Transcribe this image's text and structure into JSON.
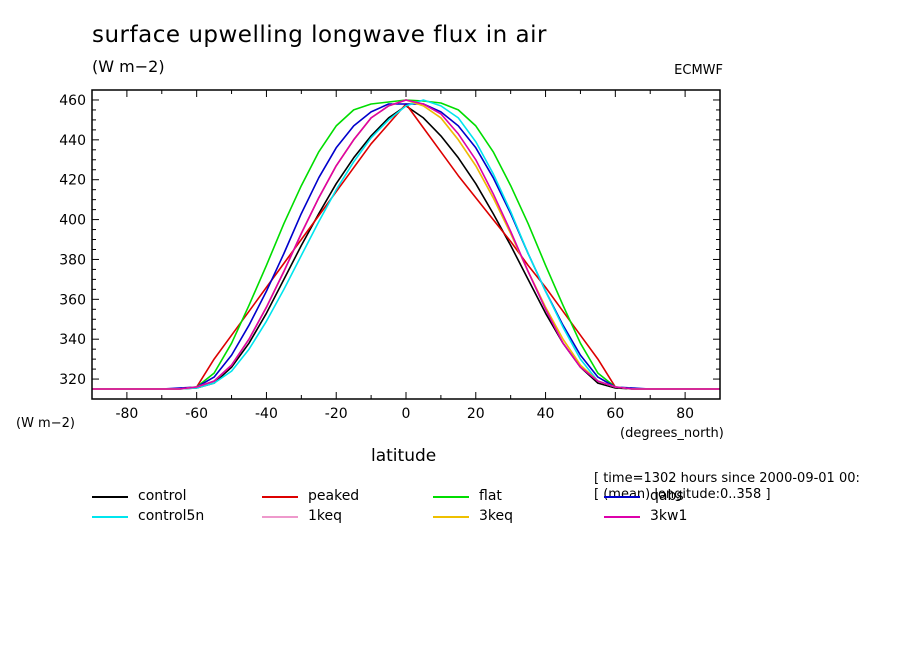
{
  "header": {
    "title": "surface upwelling longwave flux in air",
    "units": "(W m−2)",
    "source": "ECMWF"
  },
  "info": {
    "time": "[ time=1302 hours since 2000-09-01 00:",
    "mean": "[ (mean) longitude:0..358 ]"
  },
  "chart_data": {
    "type": "line",
    "title": "surface upwelling longwave flux in air",
    "xlabel": "latitude",
    "xunits": "(degrees_north)",
    "ylabel": "(W m−2)",
    "xlim": [
      -90,
      90
    ],
    "ylim": [
      310,
      465
    ],
    "xticks": [
      -80,
      -60,
      -40,
      -20,
      0,
      20,
      40,
      60,
      80
    ],
    "yticks": [
      320,
      340,
      360,
      380,
      400,
      420,
      440,
      460
    ],
    "grid": false,
    "legend_position": "bottom",
    "x": [
      -90,
      -80,
      -70,
      -65,
      -60,
      -55,
      -50,
      -45,
      -40,
      -35,
      -30,
      -25,
      -20,
      -15,
      -10,
      -5,
      0,
      5,
      10,
      15,
      20,
      25,
      30,
      35,
      40,
      45,
      50,
      55,
      60,
      65,
      70,
      80,
      90
    ],
    "series": [
      {
        "name": "control",
        "color": "#000000",
        "values": [
          315,
          315,
          315,
          315,
          315.5,
          318,
          326,
          338,
          353,
          370,
          387,
          403,
          418,
          431,
          442,
          451,
          457,
          451,
          442,
          431,
          418,
          403,
          387,
          370,
          353,
          338,
          326,
          318,
          315.5,
          315,
          315,
          315,
          315
        ]
      },
      {
        "name": "peaked",
        "color": "#dd0000",
        "values": [
          315,
          315,
          315,
          315,
          316,
          330,
          342,
          354,
          366,
          378,
          390,
          402,
          414,
          426,
          438,
          448,
          458,
          446,
          434,
          422,
          411,
          400,
          389,
          377,
          366,
          354,
          342,
          330,
          316,
          315,
          315,
          315,
          315
        ]
      },
      {
        "name": "flat",
        "color": "#00dd00",
        "values": [
          315,
          315,
          315,
          315,
          316,
          323,
          338,
          357,
          377,
          398,
          417,
          434,
          447,
          455,
          458,
          459,
          460,
          459.5,
          458.5,
          455,
          447,
          434,
          417,
          398,
          377,
          357,
          338,
          323,
          316,
          315,
          315,
          315,
          315
        ]
      },
      {
        "name": "qabs",
        "color": "#0000cc",
        "values": [
          315,
          315,
          315,
          315.5,
          316,
          321,
          332,
          347,
          364,
          383,
          403,
          421,
          436,
          447,
          454,
          458,
          458,
          458,
          454,
          447,
          436,
          421,
          403,
          383,
          364,
          347,
          332,
          321,
          316,
          315.5,
          315,
          315,
          315
        ]
      },
      {
        "name": "control5n",
        "color": "#00e5ee",
        "values": [
          315,
          315,
          315,
          315,
          315.5,
          318,
          324,
          335,
          349,
          365,
          382,
          399,
          415,
          429,
          441,
          450,
          457,
          460,
          457,
          451,
          439,
          423,
          404,
          383,
          364,
          346,
          330,
          319,
          316,
          315,
          315,
          315,
          315
        ]
      },
      {
        "name": "1keq",
        "color": "#ee99cc",
        "values": [
          315,
          315,
          315,
          315,
          316,
          319,
          327,
          340,
          356,
          374,
          393,
          411,
          427,
          440,
          451,
          457,
          460,
          457,
          451,
          440,
          427,
          411,
          393,
          374,
          356,
          340,
          327,
          319,
          316,
          315,
          315,
          315,
          315
        ]
      },
      {
        "name": "3keq",
        "color": "#eec000",
        "values": [
          315,
          315,
          315,
          315,
          316,
          319,
          327,
          340,
          356,
          374,
          393,
          411,
          427,
          440,
          451,
          457,
          460,
          457,
          451,
          440,
          427,
          411,
          393,
          374,
          356,
          340,
          327,
          319,
          316,
          315,
          315,
          315,
          315
        ]
      },
      {
        "name": "3kw1",
        "color": "#dd00aa",
        "values": [
          315,
          315,
          315,
          315,
          316,
          319,
          327,
          340,
          356,
          374,
          393,
          411,
          427,
          440,
          451,
          457,
          460,
          458,
          453,
          443,
          430,
          413,
          394,
          374,
          355,
          338,
          326,
          319,
          316,
          315,
          315,
          315,
          315
        ]
      }
    ]
  }
}
